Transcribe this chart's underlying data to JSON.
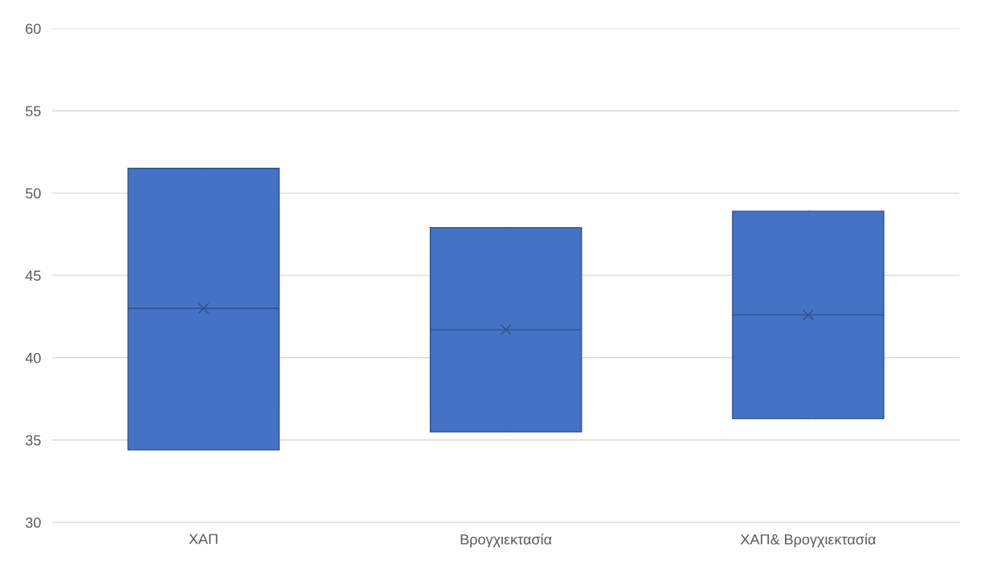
{
  "chart_data": {
    "type": "box",
    "categories": [
      "ΧΑΠ",
      "Βρογχιεκτασία",
      "ΧΑΠ& Βρογχιεκτασία"
    ],
    "boxes": [
      {
        "low": 34.4,
        "q1": 34.4,
        "median": 43.0,
        "q3": 51.5,
        "high": 51.5,
        "mean": 43.0
      },
      {
        "low": 35.5,
        "q1": 35.5,
        "median": 41.7,
        "q3": 47.9,
        "high": 47.9,
        "mean": 41.7
      },
      {
        "low": 36.3,
        "q1": 36.3,
        "median": 42.6,
        "q3": 48.9,
        "high": 48.9,
        "mean": 42.6
      }
    ],
    "color": "#4472c4",
    "ylim": [
      30,
      60
    ],
    "yticks": [
      30,
      35,
      40,
      45,
      50,
      55,
      60
    ],
    "grid": "y",
    "marker": "cross"
  }
}
